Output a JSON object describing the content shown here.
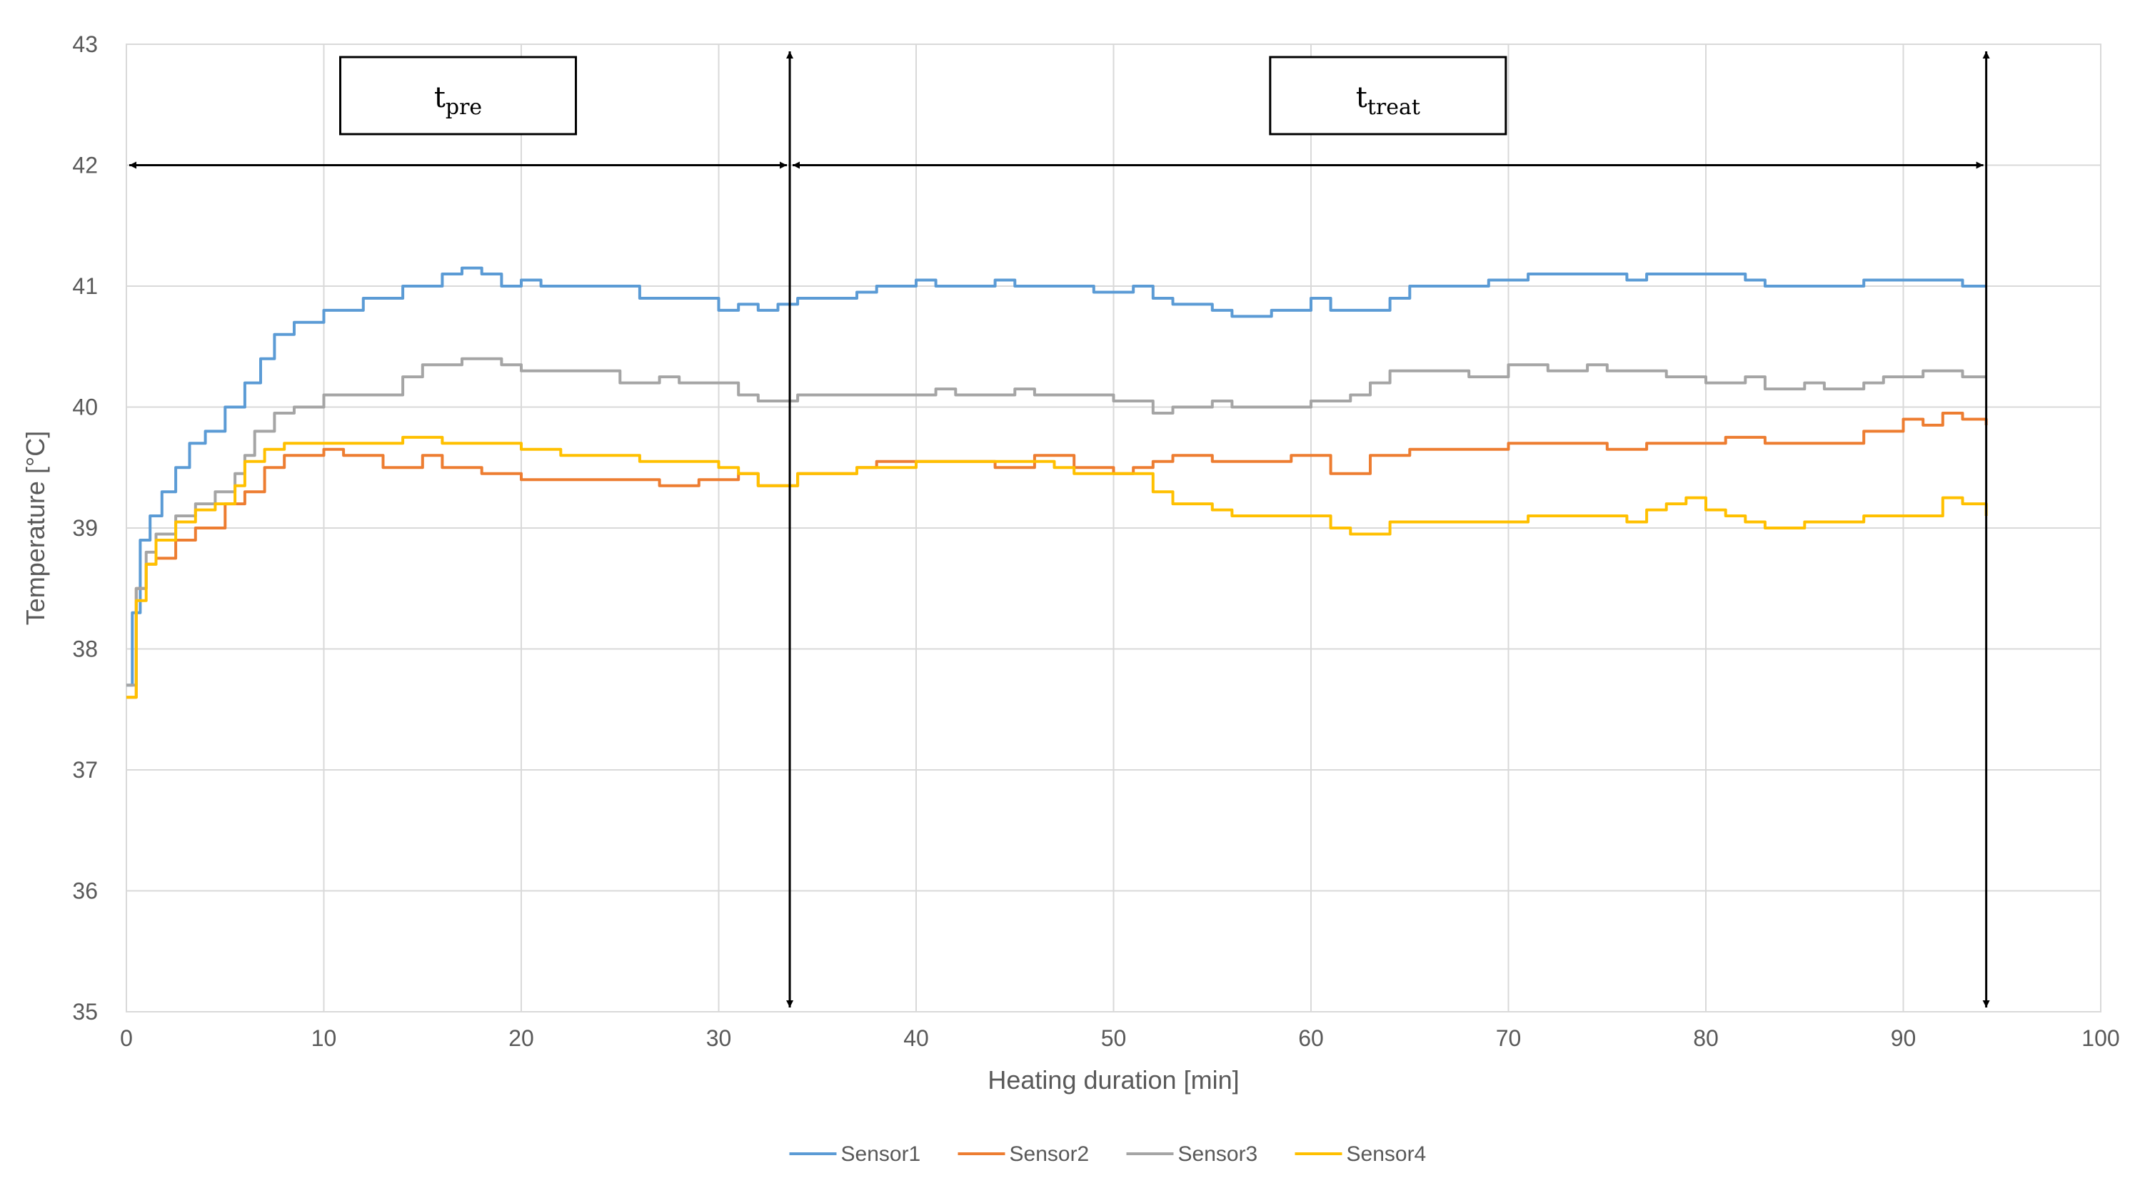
{
  "chart_data": {
    "type": "line",
    "title": "",
    "xlabel": "Heating duration [min]",
    "ylabel": "Temperature [°C]",
    "xlim": [
      0,
      100
    ],
    "ylim": [
      35,
      43
    ],
    "x_ticks": [
      0,
      10,
      20,
      30,
      40,
      50,
      60,
      70,
      80,
      90,
      100
    ],
    "y_ticks": [
      35,
      36,
      37,
      38,
      39,
      40,
      41,
      42,
      43
    ],
    "grid": true,
    "legend_position": "bottom",
    "annotations": [
      {
        "base": "t",
        "sub": "pre",
        "x_start": 0,
        "x_end": 33.6
      },
      {
        "base": "t",
        "sub": "treat",
        "x_start": 33.6,
        "x_end": 94.2
      }
    ],
    "series": [
      {
        "name": "Sensor1",
        "color": "#5B9BD5",
        "points": [
          [
            0,
            37.7
          ],
          [
            0.3,
            38.3
          ],
          [
            0.7,
            38.9
          ],
          [
            1.2,
            39.1
          ],
          [
            1.8,
            39.3
          ],
          [
            2.5,
            39.5
          ],
          [
            3.2,
            39.7
          ],
          [
            4,
            39.8
          ],
          [
            5,
            40.0
          ],
          [
            6,
            40.2
          ],
          [
            6.8,
            40.4
          ],
          [
            7.5,
            40.6
          ],
          [
            8.5,
            40.7
          ],
          [
            9.5,
            40.7
          ],
          [
            10,
            40.8
          ],
          [
            11,
            40.8
          ],
          [
            12,
            40.9
          ],
          [
            13,
            40.9
          ],
          [
            14,
            41.0
          ],
          [
            15,
            41.0
          ],
          [
            16,
            41.1
          ],
          [
            17,
            41.15
          ],
          [
            18,
            41.1
          ],
          [
            19,
            41.0
          ],
          [
            20,
            41.05
          ],
          [
            21,
            41.0
          ],
          [
            25,
            41.0
          ],
          [
            26,
            40.9
          ],
          [
            29,
            40.9
          ],
          [
            30,
            40.8
          ],
          [
            31,
            40.85
          ],
          [
            32,
            40.8
          ],
          [
            33,
            40.85
          ],
          [
            33.6,
            40.85
          ],
          [
            34,
            40.9
          ],
          [
            36,
            40.9
          ],
          [
            37,
            40.95
          ],
          [
            38,
            41.0
          ],
          [
            40,
            41.05
          ],
          [
            41,
            41.0
          ],
          [
            44,
            41.05
          ],
          [
            45,
            41.0
          ],
          [
            48,
            41.0
          ],
          [
            49,
            40.95
          ],
          [
            51,
            41.0
          ],
          [
            52,
            40.9
          ],
          [
            53,
            40.85
          ],
          [
            55,
            40.8
          ],
          [
            56,
            40.75
          ],
          [
            57,
            40.75
          ],
          [
            58,
            40.8
          ],
          [
            59,
            40.8
          ],
          [
            60,
            40.9
          ],
          [
            61,
            40.8
          ],
          [
            63,
            40.8
          ],
          [
            64,
            40.9
          ],
          [
            65,
            41.0
          ],
          [
            68,
            41.0
          ],
          [
            69,
            41.05
          ],
          [
            71,
            41.1
          ],
          [
            75,
            41.1
          ],
          [
            76,
            41.05
          ],
          [
            77,
            41.1
          ],
          [
            80,
            41.1
          ],
          [
            82,
            41.05
          ],
          [
            83,
            41.0
          ],
          [
            86,
            41.0
          ],
          [
            88,
            41.05
          ],
          [
            90,
            41.05
          ],
          [
            92,
            41.05
          ],
          [
            93,
            41.0
          ],
          [
            94.2,
            41.0
          ]
        ]
      },
      {
        "name": "Sensor2",
        "color": "#ED7D31",
        "points": [
          [
            0,
            37.6
          ],
          [
            0.5,
            38.5
          ],
          [
            1,
            38.7
          ],
          [
            1.5,
            38.75
          ],
          [
            2.5,
            38.9
          ],
          [
            3.5,
            39.0
          ],
          [
            5,
            39.2
          ],
          [
            6,
            39.3
          ],
          [
            7,
            39.5
          ],
          [
            8,
            39.6
          ],
          [
            10,
            39.65
          ],
          [
            11,
            39.6
          ],
          [
            13,
            39.5
          ],
          [
            15,
            39.6
          ],
          [
            16,
            39.5
          ],
          [
            18,
            39.45
          ],
          [
            20,
            39.4
          ],
          [
            26,
            39.4
          ],
          [
            27,
            39.35
          ],
          [
            29,
            39.4
          ],
          [
            30,
            39.4
          ],
          [
            31,
            39.45
          ],
          [
            32,
            39.35
          ],
          [
            33.6,
            39.35
          ],
          [
            34,
            39.45
          ],
          [
            37,
            39.5
          ],
          [
            38,
            39.55
          ],
          [
            40,
            39.55
          ],
          [
            42,
            39.55
          ],
          [
            44,
            39.5
          ],
          [
            46,
            39.6
          ],
          [
            47,
            39.6
          ],
          [
            48,
            39.5
          ],
          [
            50,
            39.45
          ],
          [
            51,
            39.5
          ],
          [
            52,
            39.55
          ],
          [
            53,
            39.6
          ],
          [
            55,
            39.55
          ],
          [
            57,
            39.55
          ],
          [
            59,
            39.6
          ],
          [
            60,
            39.6
          ],
          [
            61,
            39.45
          ],
          [
            62,
            39.45
          ],
          [
            63,
            39.6
          ],
          [
            65,
            39.65
          ],
          [
            68,
            39.65
          ],
          [
            70,
            39.7
          ],
          [
            73,
            39.7
          ],
          [
            75,
            39.65
          ],
          [
            77,
            39.7
          ],
          [
            80,
            39.7
          ],
          [
            81,
            39.75
          ],
          [
            83,
            39.7
          ],
          [
            86,
            39.7
          ],
          [
            88,
            39.8
          ],
          [
            90,
            39.9
          ],
          [
            91,
            39.85
          ],
          [
            92,
            39.95
          ],
          [
            93,
            39.9
          ],
          [
            94.2,
            39.85
          ]
        ]
      },
      {
        "name": "Sensor3",
        "color": "#A5A5A5",
        "points": [
          [
            0,
            37.7
          ],
          [
            0.5,
            38.5
          ],
          [
            1,
            38.8
          ],
          [
            1.5,
            38.95
          ],
          [
            2.5,
            39.1
          ],
          [
            3.5,
            39.2
          ],
          [
            4.5,
            39.3
          ],
          [
            5.5,
            39.45
          ],
          [
            6,
            39.6
          ],
          [
            6.5,
            39.8
          ],
          [
            7.5,
            39.95
          ],
          [
            8.5,
            40.0
          ],
          [
            10,
            40.1
          ],
          [
            13,
            40.1
          ],
          [
            14,
            40.25
          ],
          [
            15,
            40.35
          ],
          [
            17,
            40.4
          ],
          [
            19,
            40.35
          ],
          [
            20,
            40.3
          ],
          [
            22,
            40.3
          ],
          [
            25,
            40.2
          ],
          [
            27,
            40.25
          ],
          [
            28,
            40.2
          ],
          [
            30,
            40.2
          ],
          [
            31,
            40.1
          ],
          [
            32,
            40.05
          ],
          [
            33.6,
            40.05
          ],
          [
            34,
            40.1
          ],
          [
            40,
            40.1
          ],
          [
            41,
            40.15
          ],
          [
            42,
            40.1
          ],
          [
            45,
            40.15
          ],
          [
            46,
            40.1
          ],
          [
            49,
            40.1
          ],
          [
            50,
            40.05
          ],
          [
            51,
            40.05
          ],
          [
            52,
            39.95
          ],
          [
            53,
            40.0
          ],
          [
            55,
            40.05
          ],
          [
            56,
            40.0
          ],
          [
            60,
            40.05
          ],
          [
            62,
            40.1
          ],
          [
            63,
            40.2
          ],
          [
            64,
            40.3
          ],
          [
            66,
            40.3
          ],
          [
            68,
            40.25
          ],
          [
            70,
            40.35
          ],
          [
            72,
            40.3
          ],
          [
            74,
            40.35
          ],
          [
            75,
            40.3
          ],
          [
            77,
            40.3
          ],
          [
            78,
            40.25
          ],
          [
            80,
            40.2
          ],
          [
            82,
            40.25
          ],
          [
            83,
            40.15
          ],
          [
            85,
            40.2
          ],
          [
            86,
            40.15
          ],
          [
            88,
            40.2
          ],
          [
            89,
            40.25
          ],
          [
            91,
            40.3
          ],
          [
            93,
            40.25
          ],
          [
            94.2,
            40.25
          ]
        ]
      },
      {
        "name": "Sensor4",
        "color": "#FFC000",
        "points": [
          [
            0,
            37.6
          ],
          [
            0.5,
            38.4
          ],
          [
            1,
            38.7
          ],
          [
            1.5,
            38.9
          ],
          [
            2.5,
            39.05
          ],
          [
            3.5,
            39.15
          ],
          [
            4.5,
            39.2
          ],
          [
            5.5,
            39.35
          ],
          [
            6,
            39.55
          ],
          [
            7,
            39.65
          ],
          [
            8,
            39.7
          ],
          [
            10,
            39.7
          ],
          [
            13,
            39.7
          ],
          [
            14,
            39.75
          ],
          [
            15,
            39.75
          ],
          [
            16,
            39.7
          ],
          [
            19,
            39.7
          ],
          [
            20,
            39.65
          ],
          [
            22,
            39.6
          ],
          [
            25,
            39.6
          ],
          [
            26,
            39.55
          ],
          [
            30,
            39.5
          ],
          [
            31,
            39.45
          ],
          [
            32,
            39.35
          ],
          [
            33.6,
            39.35
          ],
          [
            34,
            39.45
          ],
          [
            36,
            39.45
          ],
          [
            37,
            39.5
          ],
          [
            40,
            39.55
          ],
          [
            43,
            39.55
          ],
          [
            45,
            39.55
          ],
          [
            46,
            39.55
          ],
          [
            47,
            39.5
          ],
          [
            48,
            39.45
          ],
          [
            50,
            39.45
          ],
          [
            51,
            39.45
          ],
          [
            52,
            39.3
          ],
          [
            53,
            39.2
          ],
          [
            55,
            39.15
          ],
          [
            56,
            39.1
          ],
          [
            58,
            39.1
          ],
          [
            60,
            39.1
          ],
          [
            61,
            39.0
          ],
          [
            62,
            38.95
          ],
          [
            64,
            39.05
          ],
          [
            66,
            39.05
          ],
          [
            68,
            39.05
          ],
          [
            70,
            39.05
          ],
          [
            71,
            39.1
          ],
          [
            73,
            39.1
          ],
          [
            75,
            39.1
          ],
          [
            76,
            39.05
          ],
          [
            77,
            39.15
          ],
          [
            78,
            39.2
          ],
          [
            79,
            39.25
          ],
          [
            80,
            39.15
          ],
          [
            81,
            39.1
          ],
          [
            82,
            39.05
          ],
          [
            83,
            39.0
          ],
          [
            85,
            39.05
          ],
          [
            88,
            39.1
          ],
          [
            91,
            39.1
          ],
          [
            92,
            39.25
          ],
          [
            93,
            39.2
          ],
          [
            94.2,
            39.1
          ]
        ]
      }
    ]
  }
}
